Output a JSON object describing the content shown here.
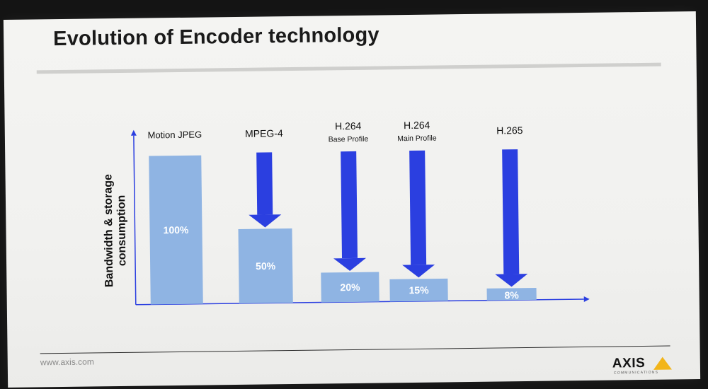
{
  "slide": {
    "title": "Evolution of Encoder technology",
    "footer_url": "www.axis.com",
    "logo_text": "AXIS",
    "logo_subtext": "COMMUNICATIONS"
  },
  "colors": {
    "bar": "#8fb4e3",
    "arrow": "#2b3fe0",
    "axis": "#2b3fe0",
    "value_text": "#ffffff",
    "label_text": "#111111",
    "logo_accent": "#f2b51a"
  },
  "chart_data": {
    "type": "bar",
    "title": "",
    "ylabel": "Bandwidth & storage consumption",
    "xlabel": "",
    "ylim": [
      0,
      100
    ],
    "grid": false,
    "categories": [
      {
        "label": "Motion JPEG",
        "sublabel": "",
        "value": 100,
        "value_label": "100%",
        "arrow": false
      },
      {
        "label": "MPEG-4",
        "sublabel": "",
        "value": 50,
        "value_label": "50%",
        "arrow": true
      },
      {
        "label": "H.264",
        "sublabel": "Base Profile",
        "value": 20,
        "value_label": "20%",
        "arrow": true
      },
      {
        "label": "H.264",
        "sublabel": "Main Profile",
        "value": 15,
        "value_label": "15%",
        "arrow": true
      },
      {
        "label": "H.265",
        "sublabel": "",
        "value": 8,
        "value_label": "8%",
        "arrow": true
      }
    ]
  }
}
